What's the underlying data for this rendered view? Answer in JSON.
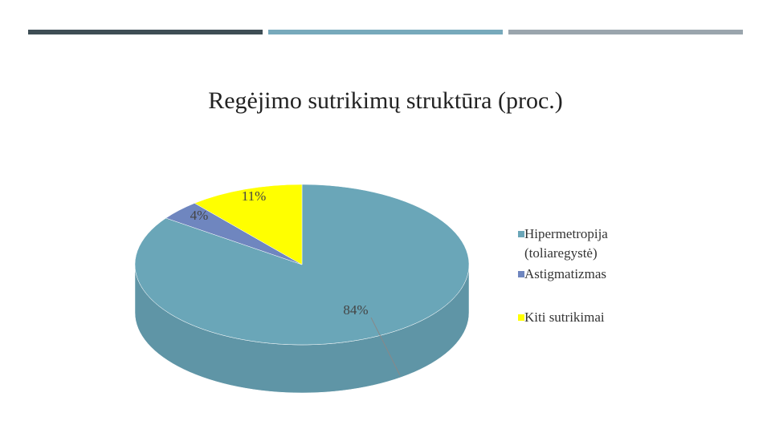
{
  "chart_data": {
    "type": "pie",
    "title": "Regėjimo sutrikimų struktūra (proc.)",
    "categories": [
      "Hipermetropija (toliaregystė)",
      "Astigmatizmas",
      "Kiti sutrikimai"
    ],
    "values": [
      84,
      4,
      11
    ],
    "value_labels": [
      "84%",
      "4%",
      "11%"
    ],
    "colors": [
      "#6aa6b8",
      "#6f86bf",
      "#ffff00"
    ]
  }
}
